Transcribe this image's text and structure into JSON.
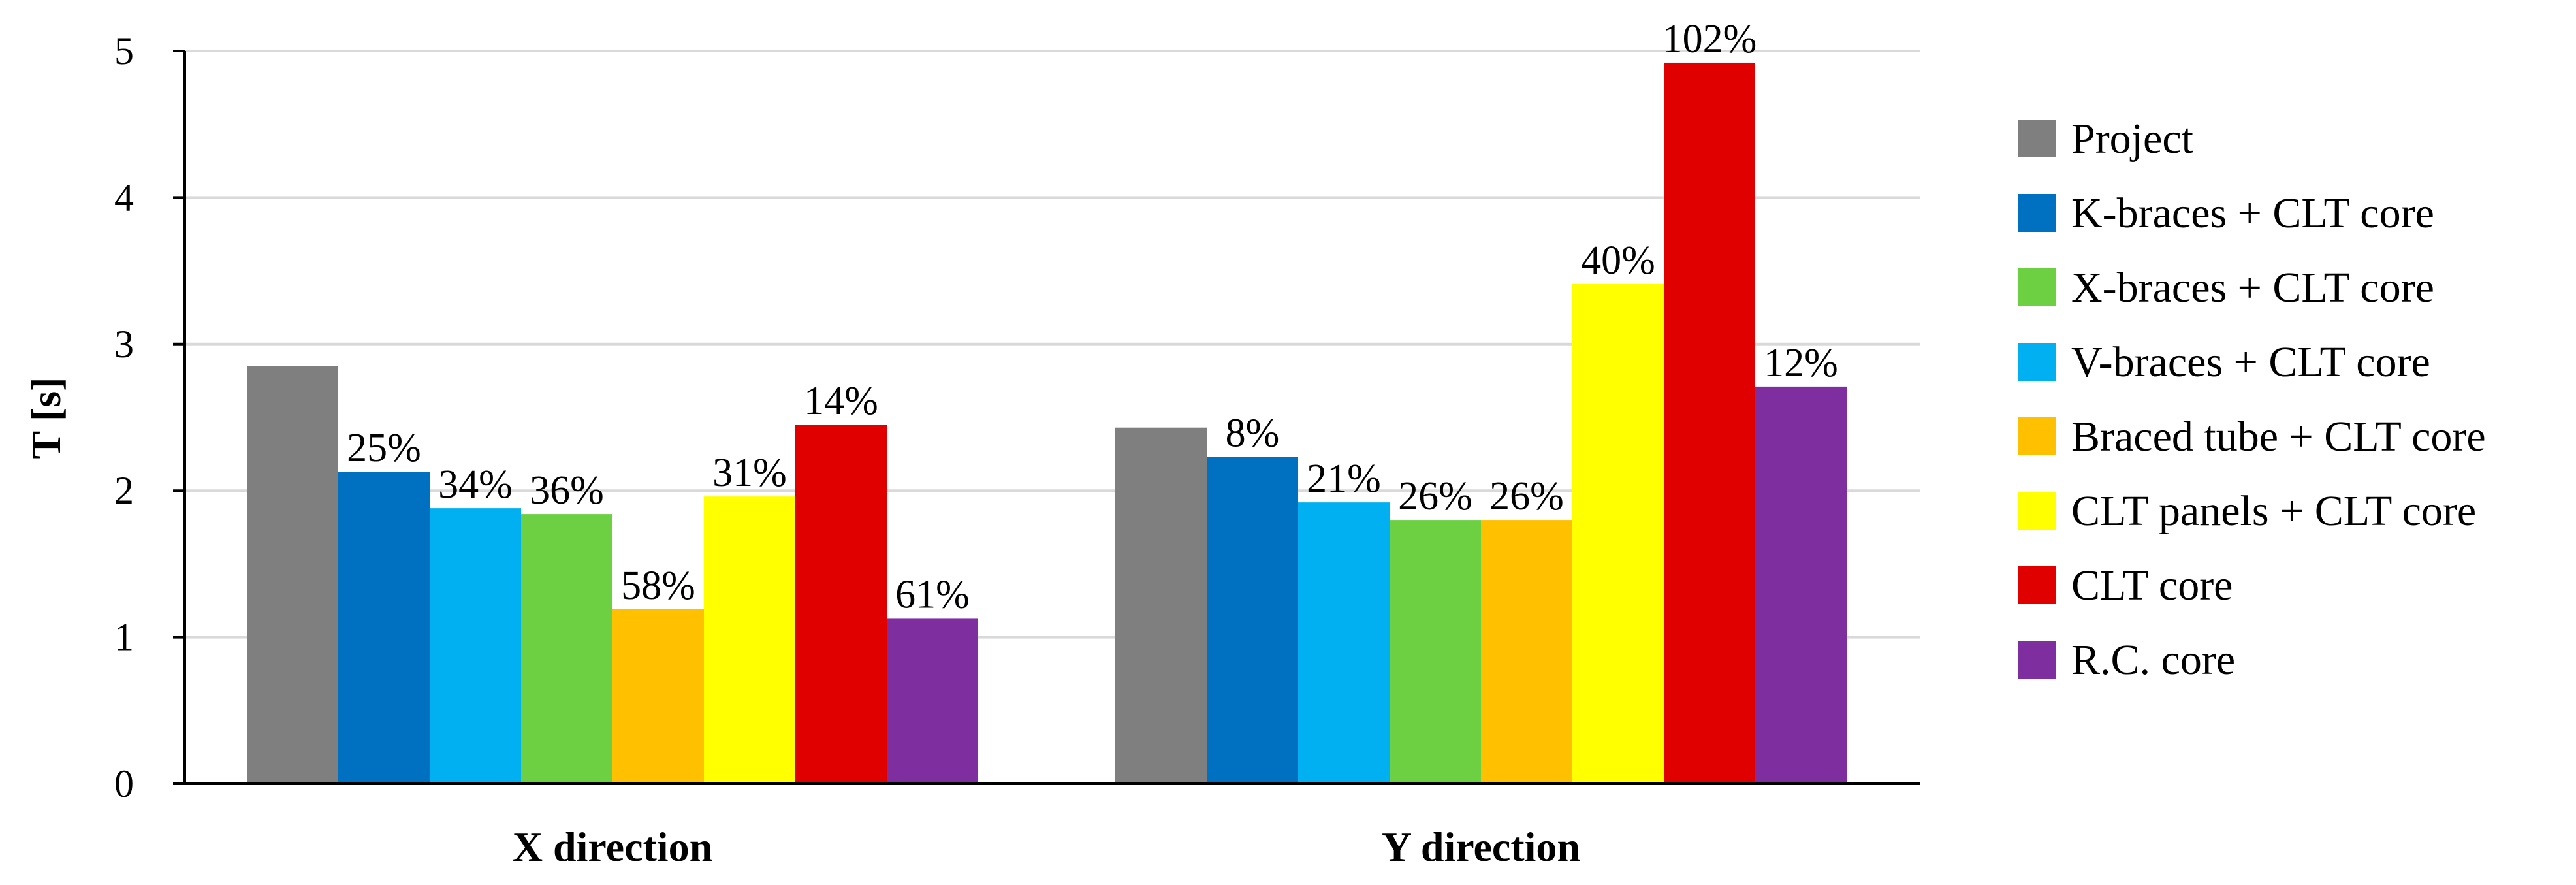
{
  "chart_data": {
    "type": "bar",
    "categories": [
      "X direction",
      "Y direction"
    ],
    "ylabel": "T [s]",
    "xlabel": "",
    "ylim": [
      0,
      5
    ],
    "yticks": [
      0,
      1,
      2,
      3,
      4,
      5
    ],
    "grid": true,
    "legend_position": "right",
    "series": [
      {
        "name": "Project",
        "color": "#7f7f7f",
        "values": [
          2.85,
          2.43
        ],
        "labels": [
          "",
          ""
        ]
      },
      {
        "name": "K-braces + CLT core",
        "color": "#0070c0",
        "values": [
          2.13,
          2.23
        ],
        "labels": [
          "25%",
          "8%"
        ]
      },
      {
        "name": "X-braces + CLT core",
        "color": "#6dd043",
        "values": [
          1.84,
          1.8
        ],
        "labels": [
          "36%",
          "26%"
        ]
      },
      {
        "name": "V-braces + CLT core",
        "color": "#00b0f0",
        "values": [
          1.88,
          1.92
        ],
        "labels": [
          "34%",
          "21%"
        ]
      },
      {
        "name": "Braced tube + CLT core",
        "color": "#ffc000",
        "values": [
          1.19,
          1.8
        ],
        "labels": [
          "58%",
          "26%"
        ]
      },
      {
        "name": "CLT panels + CLT core",
        "color": "#ffff00",
        "values": [
          1.96,
          3.41
        ],
        "labels": [
          "31%",
          "40%"
        ]
      },
      {
        "name": "CLT core",
        "color": "#e00000",
        "values": [
          2.45,
          4.92
        ],
        "labels": [
          "14%",
          "102%"
        ]
      },
      {
        "name": "R.C. core",
        "color": "#7f2ea0",
        "values": [
          1.13,
          2.71
        ],
        "labels": [
          "61%",
          "12%"
        ]
      }
    ],
    "bar_order": [
      0,
      1,
      3,
      2,
      4,
      5,
      6,
      7
    ]
  }
}
